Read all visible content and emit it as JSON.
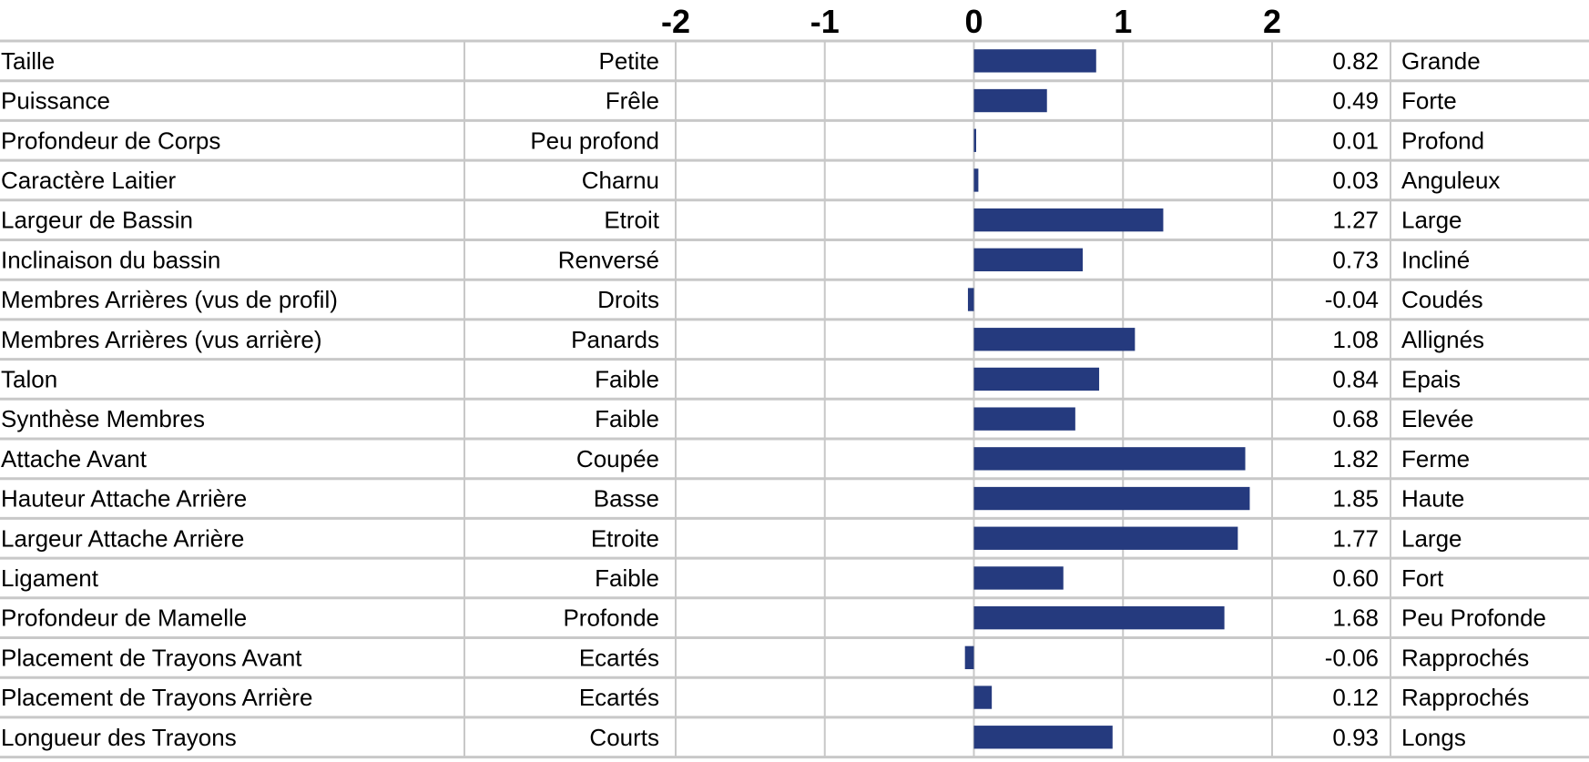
{
  "colors": {
    "bar": "#253A7E",
    "grid": "#c8c8c8",
    "text": "#000000",
    "background": "#ffffff"
  },
  "chart_data": {
    "type": "bar",
    "orientation": "horizontal",
    "xlim": [
      -2,
      2
    ],
    "ticks": [
      "-2",
      "-1",
      "0",
      "1",
      "2"
    ],
    "tick_values": [
      -2,
      -1,
      0,
      1,
      2
    ],
    "grid": true,
    "rows": [
      {
        "trait": "Taille",
        "low": "Petite",
        "value": 0.82,
        "value_label": "0.82",
        "high": "Grande"
      },
      {
        "trait": "Puissance",
        "low": "Frêle",
        "value": 0.49,
        "value_label": "0.49",
        "high": "Forte"
      },
      {
        "trait": "Profondeur de Corps",
        "low": "Peu profond",
        "value": 0.01,
        "value_label": "0.01",
        "high": "Profond"
      },
      {
        "trait": "Caractère Laitier",
        "low": "Charnu",
        "value": 0.03,
        "value_label": "0.03",
        "high": "Anguleux"
      },
      {
        "trait": "Largeur de Bassin",
        "low": "Etroit",
        "value": 1.27,
        "value_label": "1.27",
        "high": "Large"
      },
      {
        "trait": "Inclinaison du bassin",
        "low": "Renversé",
        "value": 0.73,
        "value_label": "0.73",
        "high": "Incliné"
      },
      {
        "trait": "Membres Arrières (vus de profil)",
        "low": "Droits",
        "value": -0.04,
        "value_label": "-0.04",
        "high": "Coudés"
      },
      {
        "trait": "Membres Arrières (vus arrière)",
        "low": "Panards",
        "value": 1.08,
        "value_label": "1.08",
        "high": "Allignés"
      },
      {
        "trait": "Talon",
        "low": "Faible",
        "value": 0.84,
        "value_label": "0.84",
        "high": "Epais"
      },
      {
        "trait": "Synthèse Membres",
        "low": "Faible",
        "value": 0.68,
        "value_label": "0.68",
        "high": "Elevée"
      },
      {
        "trait": "Attache Avant",
        "low": "Coupée",
        "value": 1.82,
        "value_label": "1.82",
        "high": "Ferme"
      },
      {
        "trait": "Hauteur Attache Arrière",
        "low": "Basse",
        "value": 1.85,
        "value_label": "1.85",
        "high": "Haute"
      },
      {
        "trait": "Largeur Attache Arrière",
        "low": "Etroite",
        "value": 1.77,
        "value_label": "1.77",
        "high": "Large"
      },
      {
        "trait": "Ligament",
        "low": "Faible",
        "value": 0.6,
        "value_label": "0.60",
        "high": "Fort"
      },
      {
        "trait": "Profondeur de Mamelle",
        "low": "Profonde",
        "value": 1.68,
        "value_label": "1.68",
        "high": "Peu Profonde"
      },
      {
        "trait": "Placement de Trayons Avant",
        "low": "Ecartés",
        "value": -0.06,
        "value_label": "-0.06",
        "high": "Rapprochés"
      },
      {
        "trait": "Placement de Trayons Arrière",
        "low": "Ecartés",
        "value": 0.12,
        "value_label": "0.12",
        "high": "Rapprochés"
      },
      {
        "trait": "Longueur des Trayons",
        "low": "Courts",
        "value": 0.93,
        "value_label": "0.93",
        "high": "Longs"
      }
    ]
  }
}
